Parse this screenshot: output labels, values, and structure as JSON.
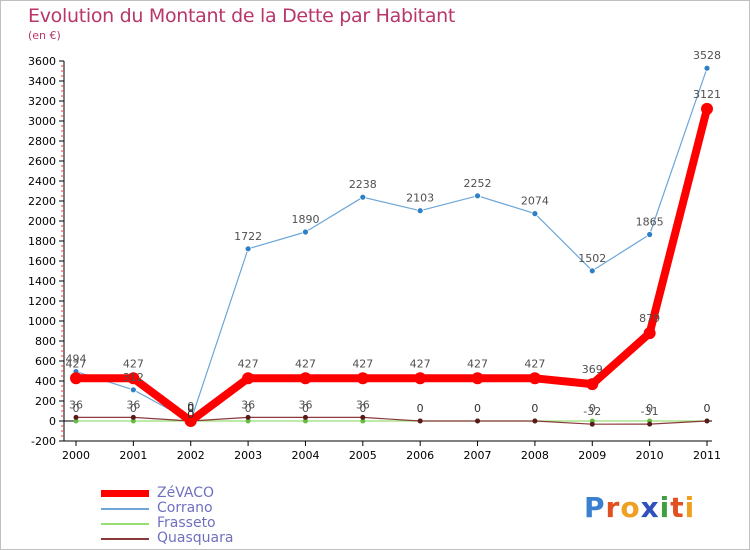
{
  "chart_data": {
    "type": "line",
    "title": "Evolution du Montant de la Dette par Habitant",
    "subtitle": "(en €)",
    "xlabel": "",
    "ylabel": "",
    "x": [
      "2000",
      "2001",
      "2002",
      "2003",
      "2004",
      "2005",
      "2006",
      "2007",
      "2008",
      "2009",
      "2010",
      "2011"
    ],
    "ylim": [
      -200,
      3600
    ],
    "yticks": [
      -200,
      0,
      200,
      400,
      600,
      800,
      1000,
      1200,
      1400,
      1600,
      1800,
      2000,
      2200,
      2400,
      2600,
      2800,
      3000,
      3200,
      3400,
      3600
    ],
    "grid": false,
    "legend_position": "bottom-left",
    "series": [
      {
        "name": "Corrano",
        "color": "#6ea6d8",
        "marker_color": "#2e7fc8",
        "values": [
          494,
          312,
          0,
          1722,
          1890,
          2238,
          2103,
          2252,
          2074,
          1502,
          1865,
          3528
        ],
        "labels": [
          "494",
          "312",
          "0",
          "1722",
          "1890",
          "2238",
          "2103",
          "2252",
          "2074",
          "1502",
          "1865",
          "3528"
        ]
      },
      {
        "name": "Frasseto",
        "color": "#99dd77",
        "marker_color": "#66bb44",
        "values": [
          0,
          0,
          0,
          0,
          0,
          0,
          0,
          0,
          0,
          0,
          0,
          0
        ],
        "labels": [
          "0",
          "0",
          "",
          "0",
          "0",
          "0",
          "",
          "",
          "",
          "0",
          "0",
          ""
        ]
      },
      {
        "name": "Quasquara",
        "color": "#8b3a3a",
        "marker_color": "#5a1a1a",
        "values": [
          36,
          36,
          0,
          36,
          36,
          36,
          0,
          0,
          0,
          -32,
          -31,
          0
        ],
        "labels": [
          "36",
          "36",
          "",
          "36",
          "36",
          "36",
          "",
          "",
          "",
          "-32",
          "-31",
          ""
        ]
      },
      {
        "name": "ZéVACO",
        "color": "#ff0000",
        "marker_color": "#ff0000",
        "values": [
          427,
          427,
          0,
          427,
          427,
          427,
          427,
          427,
          427,
          369,
          879,
          3121
        ],
        "labels": [
          "427",
          "427",
          "0",
          "427",
          "427",
          "427",
          "427",
          "427",
          "427",
          "369",
          "879",
          "3121"
        ]
      }
    ],
    "extra_labels": [
      "0",
      "0",
      "0",
      "0",
      "0",
      "0"
    ]
  },
  "legend": {
    "items": [
      {
        "label": "ZéVACO",
        "color": "#ff0000",
        "width": 7
      },
      {
        "label": "Corrano",
        "color": "#6ea6d8",
        "width": 2
      },
      {
        "label": "Frasseto",
        "color": "#99dd77",
        "width": 2
      },
      {
        "label": "Quasquara",
        "color": "#8b3a3a",
        "width": 2
      }
    ]
  },
  "logo": {
    "letters": [
      "P",
      "r",
      "o",
      "x",
      "i",
      "t",
      "i"
    ],
    "colors": [
      "#3a7fd0",
      "#e05020",
      "#f0a020",
      "#3050c0",
      "#40a040",
      "#e05020",
      "#f0a020"
    ]
  }
}
